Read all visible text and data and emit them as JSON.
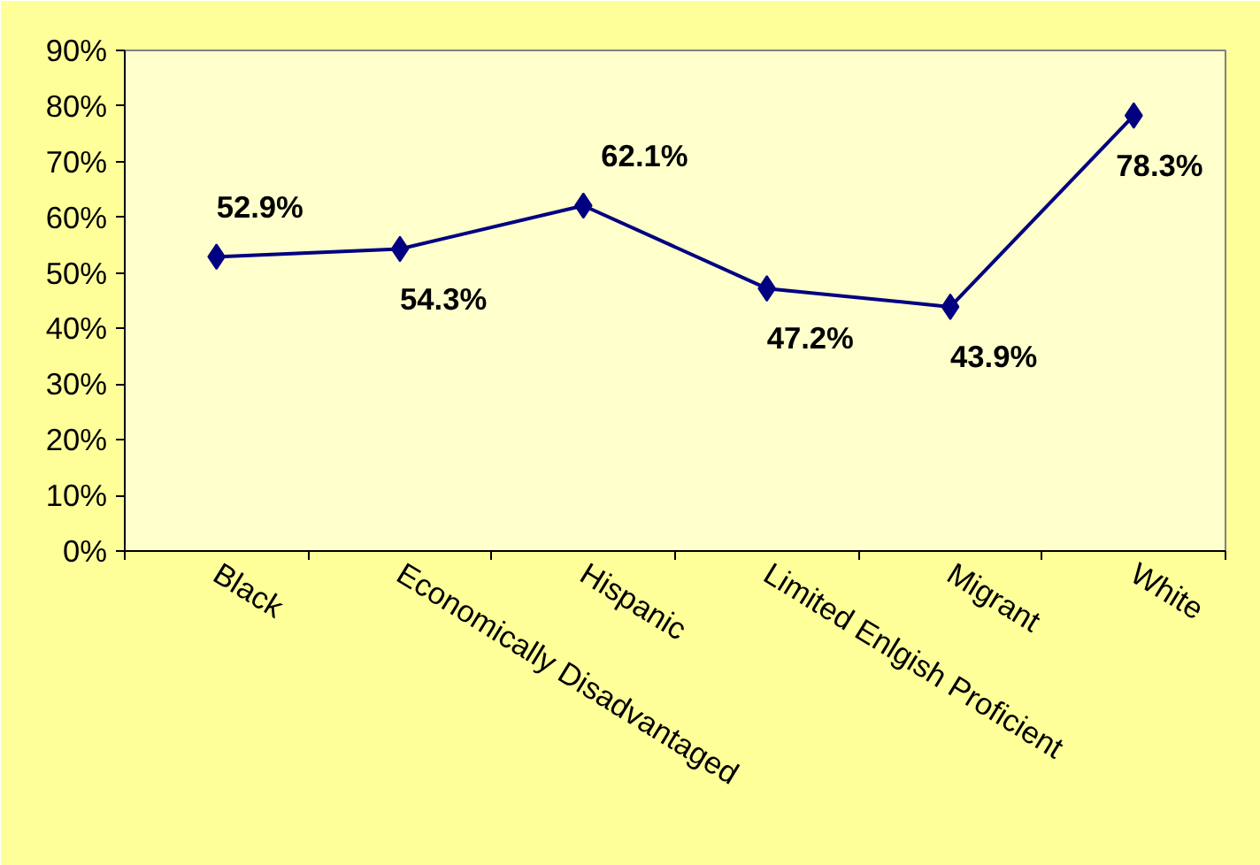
{
  "chart_data": {
    "type": "line",
    "categories": [
      "Black",
      "Economically Disadvantaged",
      "Hispanic",
      "Limited Enlgish Proficient",
      "Migrant",
      "White"
    ],
    "series": [
      {
        "color": "#000080",
        "values": [
          52.9,
          54.3,
          62.1,
          47.2,
          43.9,
          78.3
        ],
        "value_labels": [
          "52.9%",
          "54.3%",
          "62.1%",
          "47.2%",
          "43.9%",
          "78.3%"
        ]
      }
    ],
    "ylim": [
      0,
      90
    ],
    "yticks": [
      {
        "value": 0,
        "label": "0%"
      },
      {
        "value": 10,
        "label": "10%"
      },
      {
        "value": 20,
        "label": "20%"
      },
      {
        "value": 30,
        "label": "30%"
      },
      {
        "value": 40,
        "label": "40%"
      },
      {
        "value": 50,
        "label": "50%"
      },
      {
        "value": 60,
        "label": "60%"
      },
      {
        "value": 70,
        "label": "70%"
      },
      {
        "value": 80,
        "label": "80%"
      },
      {
        "value": 90,
        "label": "90%"
      }
    ],
    "grid": false,
    "marker": "diamond",
    "line_style": "solid"
  }
}
